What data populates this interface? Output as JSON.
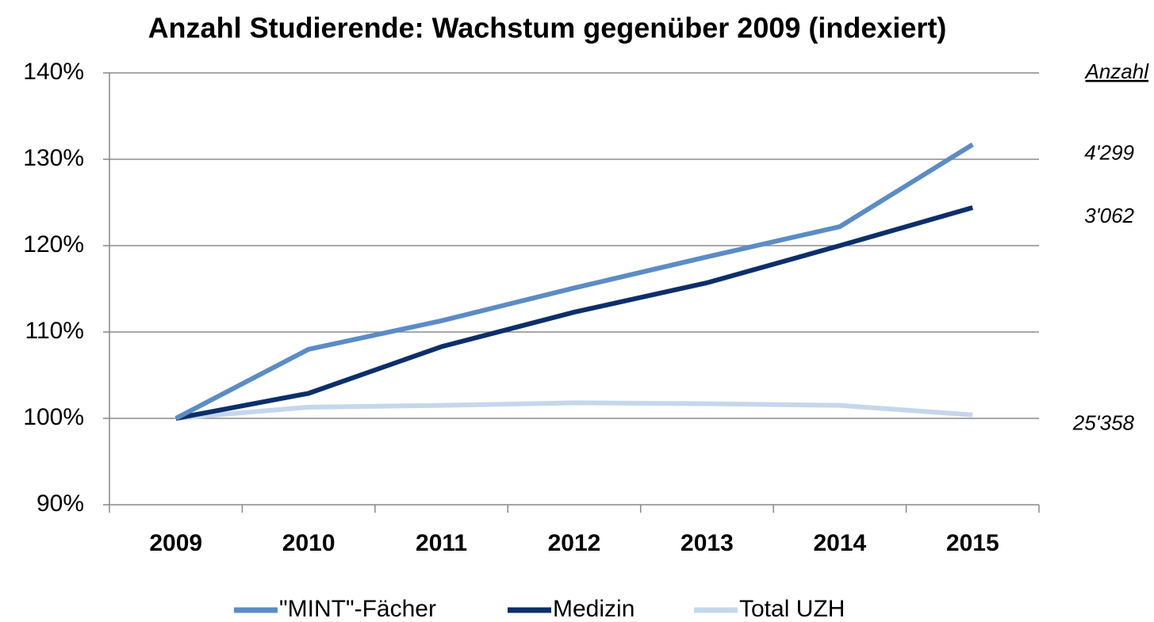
{
  "chart_data": {
    "type": "line",
    "title": "Anzahl Studierende: Wachstum gegenüber 2009 (indexiert)",
    "categories": [
      "2009",
      "2010",
      "2011",
      "2012",
      "2013",
      "2014",
      "2015"
    ],
    "series": [
      {
        "name": "\"MINT\"-Fächer",
        "color": "#5b8cc6",
        "values": [
          100,
          108.0,
          111.3,
          115.1,
          118.7,
          122.2,
          131.7
        ],
        "end_label": "4'299"
      },
      {
        "name": "Medizin",
        "color": "#0c2f6b",
        "values": [
          100,
          102.9,
          108.3,
          112.3,
          115.7,
          120.0,
          124.4
        ],
        "end_label": "3'062"
      },
      {
        "name": "Total UZH",
        "color": "#c5d7ec",
        "values": [
          100,
          101.3,
          101.5,
          101.8,
          101.7,
          101.5,
          100.4
        ],
        "end_label": "25'358"
      }
    ],
    "annotation_header": "Anzahl",
    "ylim": [
      90,
      140
    ],
    "yticks": [
      {
        "value": 90,
        "label": "90%"
      },
      {
        "value": 100,
        "label": "100%"
      },
      {
        "value": 110,
        "label": "110%"
      },
      {
        "value": 120,
        "label": "120%"
      },
      {
        "value": 130,
        "label": "130%"
      },
      {
        "value": 140,
        "label": "140%"
      }
    ],
    "grid": true,
    "legend": "bottom"
  }
}
